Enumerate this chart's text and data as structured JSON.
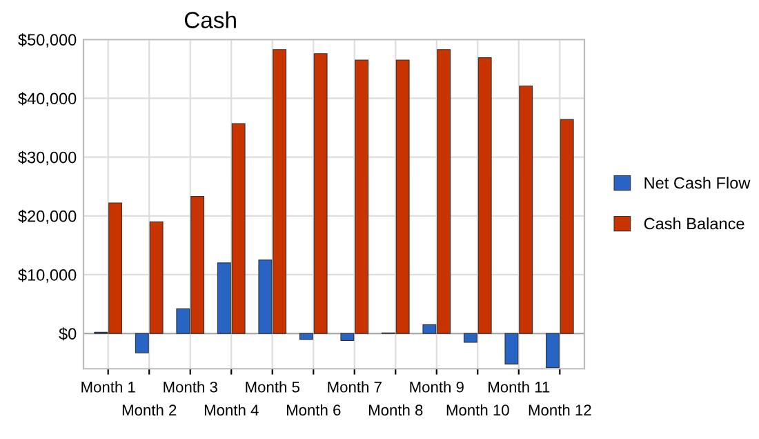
{
  "chart_data": {
    "type": "bar",
    "title": "Cash",
    "categories": [
      "Month 1",
      "Month 2",
      "Month 3",
      "Month 4",
      "Month 5",
      "Month 6",
      "Month 7",
      "Month 8",
      "Month 9",
      "Month 10",
      "Month 11",
      "Month 12"
    ],
    "series": [
      {
        "name": "Net Cash Flow",
        "color": "#2764c4",
        "values": [
          200,
          -3300,
          4200,
          12000,
          12500,
          -1000,
          -1200,
          100,
          1500,
          -1500,
          -5200,
          -5800
        ]
      },
      {
        "name": "Cash Balance",
        "color": "#c83400",
        "values": [
          22200,
          19000,
          23300,
          35700,
          48300,
          47600,
          46500,
          46500,
          48300,
          46900,
          42100,
          36400
        ]
      }
    ],
    "ylim": [
      -6000,
      50000
    ],
    "yticks": [
      {
        "value": 0,
        "label": "$0"
      },
      {
        "value": 10000,
        "label": "$10,000"
      },
      {
        "value": 20000,
        "label": "$20,000"
      },
      {
        "value": 30000,
        "label": "$30,000"
      },
      {
        "value": 40000,
        "label": "$40,000"
      },
      {
        "value": 50000,
        "label": "$50,000"
      }
    ],
    "grid": true,
    "legend": "right"
  }
}
